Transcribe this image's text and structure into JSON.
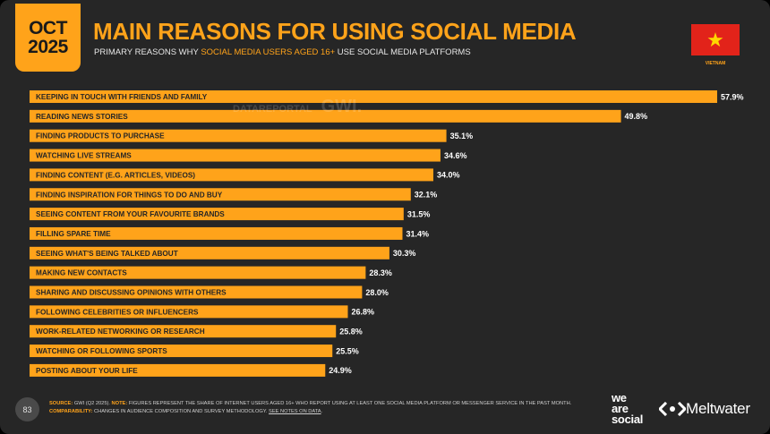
{
  "header": {
    "month": "OCT",
    "year": "2025",
    "title": "MAIN REASONS FOR USING SOCIAL MEDIA",
    "subtitle_pre": "PRIMARY REASONS WHY ",
    "subtitle_highlight": "SOCIAL MEDIA USERS AGED 16+",
    "subtitle_post": " USE SOCIAL MEDIA PLATFORMS",
    "country": "VIETNAM",
    "flag_colors": {
      "field": "#e2231a",
      "star": "#ffd700"
    }
  },
  "watermark": {
    "source1": "DATAREPORTAL",
    "source2": "GWI."
  },
  "chart_data": {
    "type": "bar",
    "orientation": "horizontal",
    "value_suffix": "%",
    "bar_color": "#ffa31a",
    "categories": [
      "KEEPING IN TOUCH WITH FRIENDS AND FAMILY",
      "READING NEWS STORIES",
      "FINDING PRODUCTS TO PURCHASE",
      "WATCHING LIVE STREAMS",
      "FINDING CONTENT (E.G. ARTICLES, VIDEOS)",
      "FINDING INSPIRATION FOR THINGS TO DO AND BUY",
      "SEEING CONTENT FROM YOUR FAVOURITE BRANDS",
      "FILLING SPARE TIME",
      "SEEING WHAT'S BEING TALKED ABOUT",
      "MAKING NEW CONTACTS",
      "SHARING AND DISCUSSING OPINIONS WITH OTHERS",
      "FOLLOWING CELEBRITIES OR INFLUENCERS",
      "WORK-RELATED NETWORKING OR RESEARCH",
      "WATCHING OR FOLLOWING SPORTS",
      "POSTING ABOUT YOUR LIFE"
    ],
    "values": [
      57.9,
      49.8,
      35.1,
      34.6,
      34.0,
      32.1,
      31.5,
      31.4,
      30.3,
      28.3,
      28.0,
      26.8,
      25.8,
      25.5,
      24.9
    ],
    "value_labels": [
      "57.9%",
      "49.8%",
      "35.1%",
      "34.6%",
      "34.0%",
      "32.1%",
      "31.5%",
      "31.4%",
      "30.3%",
      "28.3%",
      "28.0%",
      "26.8%",
      "25.8%",
      "25.5%",
      "24.9%"
    ]
  },
  "footer": {
    "page_number": "83",
    "source_label": "SOURCE:",
    "source_text": " GWI (Q2 2025). ",
    "note_label": "NOTE:",
    "note_text": " FIGURES REPRESENT THE SHARE OF INTERNET USERS AGED 16+ WHO REPORT USING AT LEAST ONE SOCIAL MEDIA PLATFORM OR MESSENGER SERVICE IN THE PAST MONTH.",
    "comparability_label": "COMPARABILITY:",
    "comparability_text": " CHANGES IN AUDIENCE COMPOSITION AND SURVEY METHODOLOGY. ",
    "comparability_link": "SEE NOTES ON DATA",
    "comparability_end": ".",
    "brand1_line1": "we",
    "brand1_line2": "are",
    "brand1_line3": "social",
    "brand2": "Meltwater"
  }
}
